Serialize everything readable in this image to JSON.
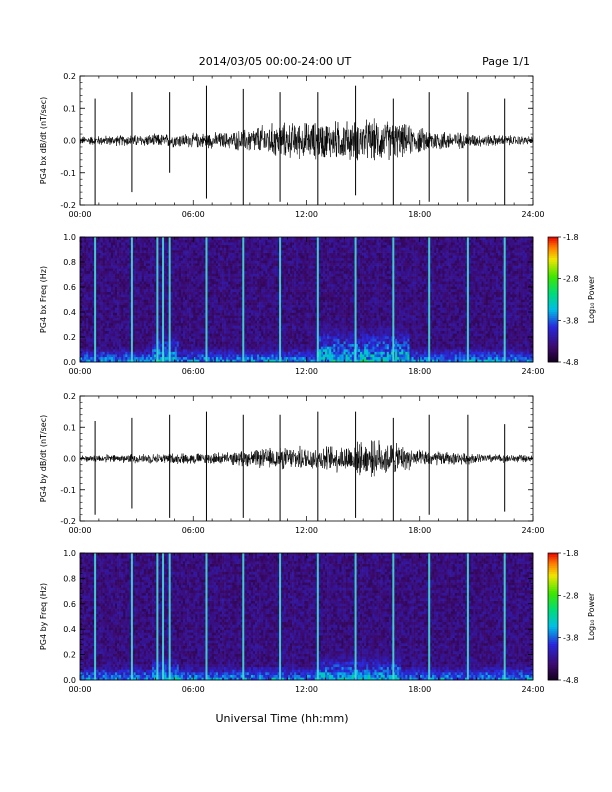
{
  "header": {
    "title": "2014/03/05  00:00-24:00 UT",
    "page": "Page 1/1"
  },
  "x_axis": {
    "label": "Universal Time (hh:mm)",
    "ticks": [
      "00:00",
      "06:00",
      "12:00",
      "18:00",
      "24:00"
    ],
    "range_hours": [
      0,
      24
    ]
  },
  "colorbar": {
    "label": "Log₁₀ Power",
    "ticks": [
      "-1.8",
      "-2.8",
      "-3.8",
      "-4.8"
    ],
    "range": [
      -4.8,
      -1.8
    ]
  },
  "colors": {
    "axis": "#000000",
    "trace": "#000000",
    "spectro_background": "#3a0a66",
    "spectro_spike": "#40e0d0"
  },
  "chart_data": [
    {
      "type": "line",
      "name": "bx-waveform",
      "ylabel": "PG4 bx dB/dt (nT/sec)",
      "ylim": [
        -0.2,
        0.2
      ],
      "yticks": [
        "-0.2",
        "-0.1",
        "0.0",
        "0.1",
        "0.2"
      ],
      "xlim": [
        0,
        24
      ],
      "grid": false,
      "pulse_times_h": [
        0.8,
        2.75,
        4.75,
        6.7,
        8.65,
        10.6,
        12.6,
        14.6,
        16.6,
        18.5,
        20.55,
        22.5
      ],
      "pulse_peaks": [
        0.13,
        0.15,
        0.15,
        0.17,
        0.16,
        0.15,
        0.15,
        0.17,
        0.13,
        0.15,
        0.15,
        0.13
      ],
      "pulse_troughs": [
        -0.2,
        -0.16,
        -0.1,
        -0.18,
        -0.2,
        -0.19,
        -0.2,
        -0.17,
        -0.2,
        -0.19,
        -0.19,
        -0.2
      ],
      "activity_envelope": [
        {
          "t": 0,
          "amp": 0.01
        },
        {
          "t": 4,
          "amp": 0.015
        },
        {
          "t": 8,
          "amp": 0.02
        },
        {
          "t": 10,
          "amp": 0.04
        },
        {
          "t": 13,
          "amp": 0.045
        },
        {
          "t": 16,
          "amp": 0.05
        },
        {
          "t": 18,
          "amp": 0.03
        },
        {
          "t": 21,
          "amp": 0.015
        },
        {
          "t": 24,
          "amp": 0.01
        }
      ]
    },
    {
      "type": "heatmap",
      "name": "bx-spectrogram",
      "ylabel": "PG4 bx Freq (Hz)",
      "ylim": [
        0.0,
        1.0
      ],
      "yticks": [
        "0.0",
        "0.2",
        "0.4",
        "0.6",
        "0.8",
        "1.0"
      ],
      "xlim": [
        0,
        24
      ],
      "zlim": [
        -4.8,
        -1.8
      ],
      "spike_times_h": [
        0.8,
        2.75,
        4.1,
        4.4,
        4.75,
        6.7,
        8.65,
        10.6,
        12.6,
        14.6,
        16.6,
        18.5,
        20.55,
        22.5
      ],
      "enhanced_regions": [
        {
          "t_start": 12.5,
          "t_end": 17.5,
          "f_max": 0.35,
          "level": -3.3
        },
        {
          "t_start": 3.8,
          "t_end": 5.2,
          "f_max": 0.3,
          "level": -3.4
        }
      ]
    },
    {
      "type": "line",
      "name": "by-waveform",
      "ylabel": "PG4 by dB/dt (nT/sec)",
      "ylim": [
        -0.2,
        0.2
      ],
      "yticks": [
        "-0.2",
        "-0.1",
        "0.0",
        "0.1",
        "0.2"
      ],
      "xlim": [
        0,
        24
      ],
      "grid": false,
      "pulse_times_h": [
        0.8,
        2.75,
        4.75,
        6.7,
        8.65,
        10.6,
        12.6,
        14.6,
        16.6,
        18.5,
        20.55,
        22.5
      ],
      "pulse_peaks": [
        0.12,
        0.13,
        0.14,
        0.15,
        0.14,
        0.14,
        0.15,
        0.15,
        0.13,
        0.14,
        0.14,
        0.11
      ],
      "pulse_troughs": [
        -0.18,
        -0.16,
        -0.19,
        -0.2,
        -0.19,
        -0.2,
        -0.2,
        -0.19,
        -0.2,
        -0.18,
        -0.2,
        -0.17
      ],
      "activity_envelope": [
        {
          "t": 0,
          "amp": 0.008
        },
        {
          "t": 4,
          "amp": 0.012
        },
        {
          "t": 8,
          "amp": 0.015
        },
        {
          "t": 10,
          "amp": 0.025
        },
        {
          "t": 13,
          "amp": 0.03
        },
        {
          "t": 16,
          "amp": 0.045
        },
        {
          "t": 18,
          "amp": 0.02
        },
        {
          "t": 21,
          "amp": 0.012
        },
        {
          "t": 24,
          "amp": 0.008
        }
      ]
    },
    {
      "type": "heatmap",
      "name": "by-spectrogram",
      "ylabel": "PG4 by Freq (Hz)",
      "ylim": [
        0.0,
        1.0
      ],
      "yticks": [
        "0.0",
        "0.2",
        "0.4",
        "0.6",
        "0.8",
        "1.0"
      ],
      "xlim": [
        0,
        24
      ],
      "zlim": [
        -4.8,
        -1.8
      ],
      "spike_times_h": [
        0.8,
        2.75,
        4.1,
        4.4,
        4.75,
        6.7,
        8.65,
        10.6,
        12.6,
        14.6,
        16.6,
        18.5,
        20.55,
        22.5
      ],
      "enhanced_regions": [
        {
          "t_start": 12.5,
          "t_end": 17.0,
          "f_max": 0.25,
          "level": -3.4
        },
        {
          "t_start": 3.8,
          "t_end": 5.2,
          "f_max": 0.25,
          "level": -3.5
        }
      ]
    }
  ]
}
